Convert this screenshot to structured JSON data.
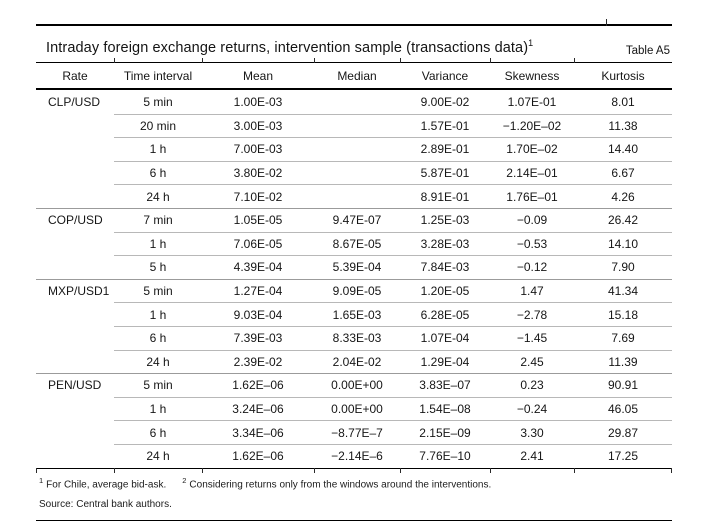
{
  "table_meta": {
    "title": "Intraday foreign exchange returns, intervention sample (transactions data)",
    "title_note_marker": "1",
    "table_label": "Table A5"
  },
  "columns": {
    "rate": "Rate",
    "interval": "Time interval",
    "mean": "Mean",
    "median": "Median",
    "variance": "Variance",
    "skewness": "Skewness",
    "kurtosis": "Kurtosis"
  },
  "groups": [
    {
      "rate": "CLP/USD",
      "rows": [
        {
          "interval": "5 min",
          "mean": "1.00E-03",
          "median": "",
          "variance": "9.00E-02",
          "skewness": "1.07E-01",
          "kurtosis": "8.01"
        },
        {
          "interval": "20 min",
          "mean": "3.00E-03",
          "median": "",
          "variance": "1.57E-01",
          "skewness": "−1.20E–02",
          "kurtosis": "11.38"
        },
        {
          "interval": "1 h",
          "mean": "7.00E-03",
          "median": "",
          "variance": "2.89E-01",
          "skewness": "1.70E–02",
          "kurtosis": "14.40"
        },
        {
          "interval": "6 h",
          "mean": "3.80E-02",
          "median": "",
          "variance": "5.87E-01",
          "skewness": "2.14E–01",
          "kurtosis": "6.67"
        },
        {
          "interval": "24 h",
          "mean": "7.10E-02",
          "median": "",
          "variance": "8.91E-01",
          "skewness": "1.76E–01",
          "kurtosis": "4.26"
        }
      ]
    },
    {
      "rate": "COP/USD",
      "rows": [
        {
          "interval": "7 min",
          "mean": "1.05E-05",
          "median": "9.47E-07",
          "variance": "1.25E-03",
          "skewness": "−0.09",
          "kurtosis": "26.42"
        },
        {
          "interval": "1 h",
          "mean": "7.06E-05",
          "median": "8.67E-05",
          "variance": "3.28E-03",
          "skewness": "−0.53",
          "kurtosis": "14.10"
        },
        {
          "interval": "5 h",
          "mean": "4.39E-04",
          "median": "5.39E-04",
          "variance": "7.84E-03",
          "skewness": "−0.12",
          "kurtosis": "7.90"
        }
      ]
    },
    {
      "rate": "MXP/USD1",
      "rows": [
        {
          "interval": "5 min",
          "mean": "1.27E-04",
          "median": "9.09E-05",
          "variance": "1.20E-05",
          "skewness": "1.47",
          "kurtosis": "41.34"
        },
        {
          "interval": "1 h",
          "mean": "9.03E-04",
          "median": "1.65E-03",
          "variance": "6.28E-05",
          "skewness": "−2.78",
          "kurtosis": "15.18"
        },
        {
          "interval": "6 h",
          "mean": "7.39E-03",
          "median": "8.33E-03",
          "variance": "1.07E-04",
          "skewness": "−1.45",
          "kurtosis": "7.69"
        },
        {
          "interval": "24 h",
          "mean": "2.39E-02",
          "median": "2.04E-02",
          "variance": "1.29E-04",
          "skewness": "2.45",
          "kurtosis": "11.39"
        }
      ]
    },
    {
      "rate": "PEN/USD",
      "rows": [
        {
          "interval": "5 min",
          "mean": "1.62E–06",
          "median": "0.00E+00",
          "variance": "3.83E–07",
          "skewness": "0.23",
          "kurtosis": "90.91"
        },
        {
          "interval": "1 h",
          "mean": "3.24E–06",
          "median": "0.00E+00",
          "variance": "1.54E–08",
          "skewness": "−0.24",
          "kurtosis": "46.05"
        },
        {
          "interval": "6 h",
          "mean": "3.34E–06",
          "median": "−8.77E–7",
          "variance": "2.15E–09",
          "skewness": "3.30",
          "kurtosis": "29.87"
        },
        {
          "interval": "24 h",
          "mean": "1.62E–06",
          "median": "−2.14E–6",
          "variance": "7.76E–10",
          "skewness": "2.41",
          "kurtosis": "17.25"
        }
      ]
    }
  ],
  "footnotes": [
    {
      "marker": "1",
      "text": "For Chile, average bid-ask."
    },
    {
      "marker": "2",
      "text": "Considering returns only from the windows around the interventions."
    }
  ],
  "source": "Source: Central bank authors."
}
